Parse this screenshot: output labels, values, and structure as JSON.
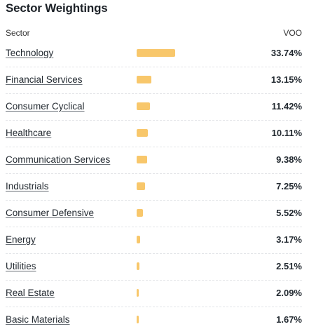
{
  "title": "Sector Weightings",
  "header": {
    "sector_label": "Sector",
    "fund_label": "VOO"
  },
  "colors": {
    "bar": "#f8c76b",
    "divider": "#e3e5e8"
  },
  "rows": [
    {
      "sector": "Technology",
      "weight": 33.74,
      "value": "33.74%"
    },
    {
      "sector": "Financial Services",
      "weight": 13.15,
      "value": "13.15%"
    },
    {
      "sector": "Consumer Cyclical",
      "weight": 11.42,
      "value": "11.42%"
    },
    {
      "sector": "Healthcare",
      "weight": 10.11,
      "value": "10.11%"
    },
    {
      "sector": "Communication Services",
      "weight": 9.38,
      "value": "9.38%"
    },
    {
      "sector": "Industrials",
      "weight": 7.25,
      "value": "7.25%"
    },
    {
      "sector": "Consumer Defensive",
      "weight": 5.52,
      "value": "5.52%"
    },
    {
      "sector": "Energy",
      "weight": 3.17,
      "value": "3.17%"
    },
    {
      "sector": "Utilities",
      "weight": 2.51,
      "value": "2.51%"
    },
    {
      "sector": "Real Estate",
      "weight": 2.09,
      "value": "2.09%"
    },
    {
      "sector": "Basic Materials",
      "weight": 1.67,
      "value": "1.67%"
    }
  ]
}
